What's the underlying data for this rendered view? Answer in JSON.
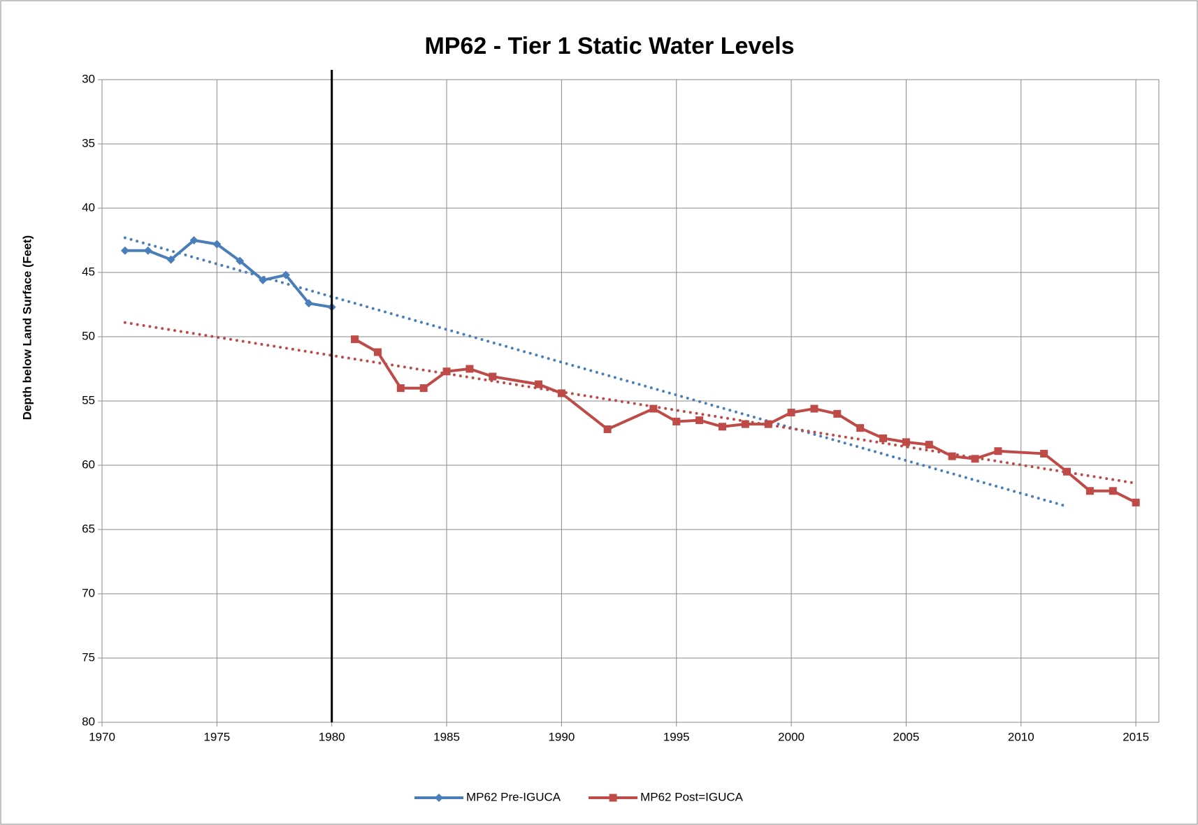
{
  "chart_data": {
    "type": "line",
    "title": "MP62 - Tier 1 Static Water Levels",
    "ylabel": "Depth below Land Surface (Feet)",
    "xlim": [
      1970,
      2016
    ],
    "xticks": [
      1970,
      1975,
      1980,
      1985,
      1990,
      1995,
      2000,
      2005,
      2010,
      2015
    ],
    "ylim": [
      30,
      80
    ],
    "yticks": [
      30,
      35,
      40,
      45,
      50,
      55,
      60,
      65,
      70,
      75,
      80
    ],
    "y_inverted": true,
    "grid": true,
    "legend": "bottom",
    "vline": {
      "x": 1980,
      "color": "#000000"
    },
    "series": [
      {
        "name": "MP62 Pre-IGUCA",
        "color": "#4a7ebb",
        "marker": "diamond",
        "x": [
          1971,
          1972,
          1973,
          1974,
          1975,
          1976,
          1977,
          1978,
          1979,
          1980
        ],
        "values": [
          43.3,
          43.3,
          44.0,
          42.5,
          42.8,
          44.1,
          45.6,
          45.2,
          47.4,
          47.7
        ]
      },
      {
        "name": "MP62 Post=IGUCA",
        "color": "#be4b48",
        "marker": "square",
        "x": [
          1981,
          1982,
          1983,
          1984,
          1985,
          1986,
          1987,
          1989,
          1990,
          1992,
          1994,
          1995,
          1996,
          1997,
          1998,
          1999,
          2000,
          2001,
          2002,
          2003,
          2004,
          2005,
          2006,
          2007,
          2008,
          2009,
          2011,
          2012,
          2013,
          2014,
          2015
        ],
        "values": [
          50.2,
          51.2,
          54.0,
          54.0,
          52.7,
          52.5,
          53.1,
          53.7,
          54.4,
          57.2,
          55.6,
          56.6,
          56.5,
          57.0,
          56.8,
          56.8,
          55.9,
          55.6,
          56.0,
          57.1,
          57.9,
          58.2,
          58.4,
          59.3,
          59.5,
          58.9,
          59.1,
          60.5,
          62.0,
          62.0,
          62.9
        ]
      }
    ],
    "trendlines": [
      {
        "color": "#4a7ebb",
        "x": [
          1971,
          2012
        ],
        "values": [
          42.3,
          63.2
        ]
      },
      {
        "color": "#be4b48",
        "x": [
          1971,
          2015
        ],
        "values": [
          48.9,
          61.4
        ]
      }
    ]
  }
}
